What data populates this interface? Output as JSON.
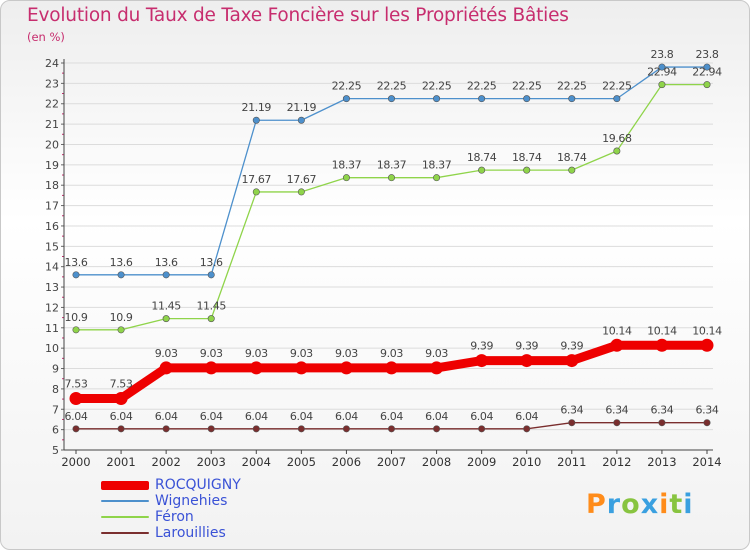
{
  "header": {
    "title": "Evolution du Taux de Taxe Foncière sur les Propriétés Bâties",
    "unit": "(en %)"
  },
  "logo": {
    "text": "Proxiti",
    "colors": [
      "#ff8c1a",
      "#3aa0e0",
      "#88c440",
      "#3aa0e0",
      "#ff8c1a",
      "#88c440",
      "#3aa0e0"
    ]
  },
  "chart_data": {
    "type": "line",
    "title": "Evolution du Taux de Taxe Foncière sur les Propriétés Bâties",
    "ylabel": "(en %)",
    "xlabel": "",
    "categories": [
      "2000",
      "2001",
      "2002",
      "2003",
      "2004",
      "2005",
      "2006",
      "2007",
      "2008",
      "2009",
      "2010",
      "2011",
      "2012",
      "2013",
      "2014"
    ],
    "ylim": [
      5,
      24
    ],
    "yticks": [
      "5",
      "6",
      "7",
      "8",
      "9",
      "10",
      "11",
      "12",
      "13",
      "14",
      "15",
      "16",
      "17",
      "18",
      "19",
      "20",
      "21",
      "22",
      "23",
      "24"
    ],
    "legend_position": "bottom-left",
    "series": [
      {
        "name": "ROCQUIGNY",
        "color": "#ee0000",
        "emphasis": "thick",
        "values": [
          7.53,
          7.53,
          9.03,
          9.03,
          9.03,
          9.03,
          9.03,
          9.03,
          9.03,
          9.39,
          9.39,
          9.39,
          10.14,
          10.14,
          10.14
        ],
        "labels": [
          "7.53",
          "7.53",
          "9.03",
          "9.03",
          "9.03",
          "9.03",
          "9.03",
          "9.03",
          "9.03",
          "9.39",
          "9.39",
          "9.39",
          "10.14",
          "10.14",
          "10.14"
        ]
      },
      {
        "name": "Wignehies",
        "color": "#4d90cc",
        "emphasis": "thin",
        "values": [
          13.6,
          13.6,
          13.6,
          13.6,
          21.19,
          21.19,
          22.25,
          22.25,
          22.25,
          22.25,
          22.25,
          22.25,
          22.25,
          23.8,
          23.8
        ],
        "labels": [
          "13.6",
          "13.6",
          "13.6",
          "13.6",
          "21.19",
          "21.19",
          "22.25",
          "22.25",
          "22.25",
          "22.25",
          "22.25",
          "22.25",
          "22.25",
          "23.8",
          "23.8"
        ]
      },
      {
        "name": "Féron",
        "color": "#8fd44a",
        "emphasis": "thin",
        "values": [
          10.9,
          10.9,
          11.45,
          11.45,
          17.67,
          17.67,
          18.37,
          18.37,
          18.37,
          18.74,
          18.74,
          18.74,
          19.68,
          22.94,
          22.94
        ],
        "labels": [
          "10.9",
          "10.9",
          "11.45",
          "11.45",
          "17.67",
          "17.67",
          "18.37",
          "18.37",
          "18.37",
          "18.74",
          "18.74",
          "18.74",
          "19.68",
          "22.94",
          "22.94"
        ]
      },
      {
        "name": "Larouillies",
        "color": "#7a2e2e",
        "emphasis": "thin",
        "values": [
          6.04,
          6.04,
          6.04,
          6.04,
          6.04,
          6.04,
          6.04,
          6.04,
          6.04,
          6.04,
          6.04,
          6.34,
          6.34,
          6.34,
          6.34
        ],
        "labels": [
          "6.04",
          "6.04",
          "6.04",
          "6.04",
          "6.04",
          "6.04",
          "6.04",
          "6.04",
          "6.04",
          "6.04",
          "6.04",
          "6.34",
          "6.34",
          "6.34",
          "6.34"
        ]
      }
    ]
  }
}
